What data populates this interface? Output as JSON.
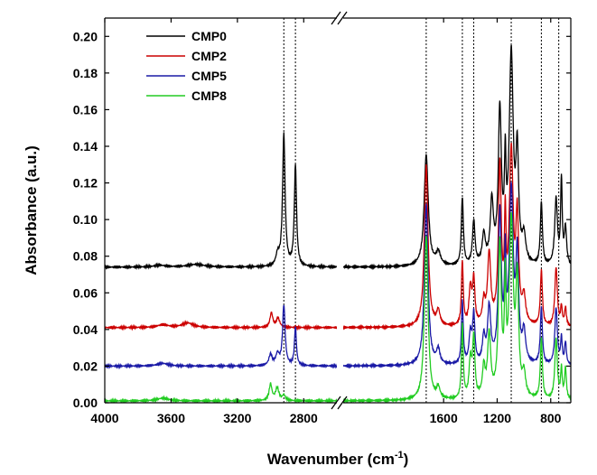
{
  "chart_data": {
    "type": "line",
    "title": "",
    "xlabel": "Wavenumber (cm",
    "xlabel_sup": "-1",
    "xlabel_close": ")",
    "ylabel": "Absorbance (a.u.)",
    "axis_break": true,
    "x_segments": [
      {
        "xlim": [
          4000,
          2600
        ],
        "ticks": [
          4000,
          3600,
          3200,
          2800
        ]
      },
      {
        "xlim": [
          2350,
          650
        ],
        "ticks": [
          1600,
          1200,
          800
        ]
      }
    ],
    "ylim": [
      0.0,
      0.21
    ],
    "yticks": [
      0.0,
      0.02,
      0.04,
      0.06,
      0.08,
      0.1,
      0.12,
      0.14,
      0.16,
      0.18,
      0.2
    ],
    "ytick_labels": [
      "0.00",
      "0.02",
      "0.04",
      "0.06",
      "0.08",
      "0.10",
      "0.12",
      "0.14",
      "0.16",
      "0.18",
      "0.20"
    ],
    "xtick_labels": [
      "4000",
      "3600",
      "3200",
      "2800",
      "1600",
      "1200",
      "800"
    ],
    "legend_position": "top-left",
    "grid": false,
    "reference_lines_x": [
      2920,
      2850,
      1730,
      1460,
      1375,
      1095,
      870,
      740
    ],
    "series": [
      {
        "name": "CMP0",
        "color": "#000000",
        "baseline": 0.074,
        "peaks": [
          [
            3670,
            0.001,
            40
          ],
          [
            3450,
            0.0015,
            60
          ],
          [
            2957,
            0.006,
            12
          ],
          [
            2920,
            0.072,
            9
          ],
          [
            2850,
            0.055,
            8
          ],
          [
            1730,
            0.061,
            18
          ],
          [
            1640,
            0.007,
            20
          ],
          [
            1460,
            0.037,
            9
          ],
          [
            1375,
            0.024,
            11
          ],
          [
            1300,
            0.016,
            14
          ],
          [
            1240,
            0.033,
            14
          ],
          [
            1180,
            0.082,
            14
          ],
          [
            1140,
            0.046,
            7
          ],
          [
            1095,
            0.113,
            18
          ],
          [
            1050,
            0.056,
            12
          ],
          [
            1000,
            0.014,
            15
          ],
          [
            870,
            0.034,
            9
          ],
          [
            760,
            0.036,
            12
          ],
          [
            720,
            0.046,
            7
          ],
          [
            690,
            0.02,
            10
          ]
        ]
      },
      {
        "name": "CMP2",
        "color": "#cc0000",
        "baseline": 0.041,
        "peaks": [
          [
            3650,
            0.0015,
            40
          ],
          [
            3500,
            0.0025,
            40
          ],
          [
            2995,
            0.008,
            10
          ],
          [
            2955,
            0.005,
            12
          ],
          [
            1730,
            0.088,
            16
          ],
          [
            1640,
            0.008,
            15
          ],
          [
            1460,
            0.035,
            8
          ],
          [
            1400,
            0.02,
            12
          ],
          [
            1375,
            0.024,
            10
          ],
          [
            1300,
            0.012,
            12
          ],
          [
            1260,
            0.038,
            14
          ],
          [
            1180,
            0.085,
            13
          ],
          [
            1140,
            0.05,
            7
          ],
          [
            1095,
            0.093,
            18
          ],
          [
            1050,
            0.055,
            12
          ],
          [
            1000,
            0.014,
            14
          ],
          [
            870,
            0.03,
            9
          ],
          [
            760,
            0.032,
            11
          ],
          [
            720,
            0.01,
            7
          ],
          [
            690,
            0.01,
            8
          ]
        ]
      },
      {
        "name": "CMP5",
        "color": "#1a1aa6",
        "baseline": 0.02,
        "peaks": [
          [
            3650,
            0.0015,
            40
          ],
          [
            3000,
            0.006,
            12
          ],
          [
            2958,
            0.006,
            12
          ],
          [
            2920,
            0.033,
            9
          ],
          [
            2850,
            0.021,
            7
          ],
          [
            1730,
            0.088,
            16
          ],
          [
            1640,
            0.008,
            15
          ],
          [
            1460,
            0.034,
            8
          ],
          [
            1400,
            0.016,
            12
          ],
          [
            1375,
            0.026,
            10
          ],
          [
            1300,
            0.014,
            12
          ],
          [
            1260,
            0.03,
            14
          ],
          [
            1180,
            0.081,
            13
          ],
          [
            1140,
            0.05,
            7
          ],
          [
            1095,
            0.093,
            18
          ],
          [
            1050,
            0.055,
            12
          ],
          [
            1000,
            0.016,
            14
          ],
          [
            870,
            0.031,
            9
          ],
          [
            760,
            0.031,
            11
          ],
          [
            720,
            0.014,
            7
          ],
          [
            690,
            0.012,
            8
          ]
        ]
      },
      {
        "name": "CMP8",
        "color": "#22cc22",
        "baseline": 0.001,
        "peaks": [
          [
            3650,
            0.0015,
            40
          ],
          [
            3000,
            0.009,
            10
          ],
          [
            2960,
            0.007,
            12
          ],
          [
            2920,
            0.003,
            10
          ],
          [
            1730,
            0.09,
            16
          ],
          [
            1640,
            0.006,
            15
          ],
          [
            1460,
            0.04,
            8
          ],
          [
            1400,
            0.02,
            12
          ],
          [
            1375,
            0.032,
            10
          ],
          [
            1300,
            0.016,
            12
          ],
          [
            1260,
            0.034,
            14
          ],
          [
            1180,
            0.082,
            13
          ],
          [
            1140,
            0.055,
            7
          ],
          [
            1095,
            0.095,
            18
          ],
          [
            1050,
            0.06,
            12
          ],
          [
            1000,
            0.012,
            14
          ],
          [
            870,
            0.033,
            9
          ],
          [
            760,
            0.033,
            11
          ],
          [
            720,
            0.016,
            7
          ],
          [
            690,
            0.017,
            8
          ]
        ]
      }
    ]
  }
}
